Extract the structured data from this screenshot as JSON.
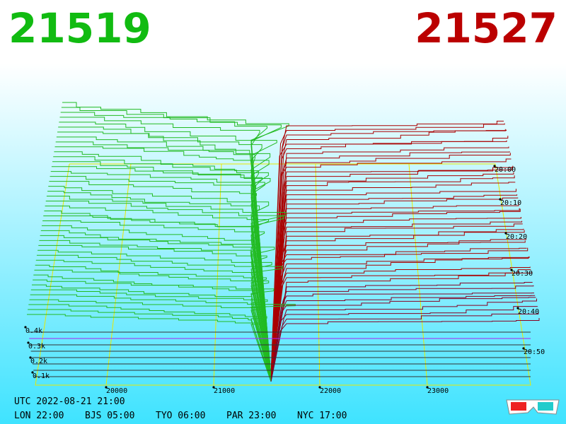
{
  "header": {
    "bid": "21519",
    "ask": "21527"
  },
  "depth_axis": {
    "labels": [
      "0.4k",
      "0.3k",
      "0.2k",
      "0.1k"
    ]
  },
  "price_axis": {
    "labels": [
      "20000",
      "21000",
      "22000",
      "23000"
    ]
  },
  "time_axis": {
    "labels": [
      "20:00",
      "20:10",
      "20:20",
      "20:30",
      "20:40",
      "20:50"
    ]
  },
  "footer": {
    "utc": "UTC 2022-08-21 21:00",
    "clocks": [
      "LON 22:00",
      "BJS 05:00",
      "TYO 06:00",
      "PAR 23:00",
      "NYC 17:00"
    ]
  }
}
